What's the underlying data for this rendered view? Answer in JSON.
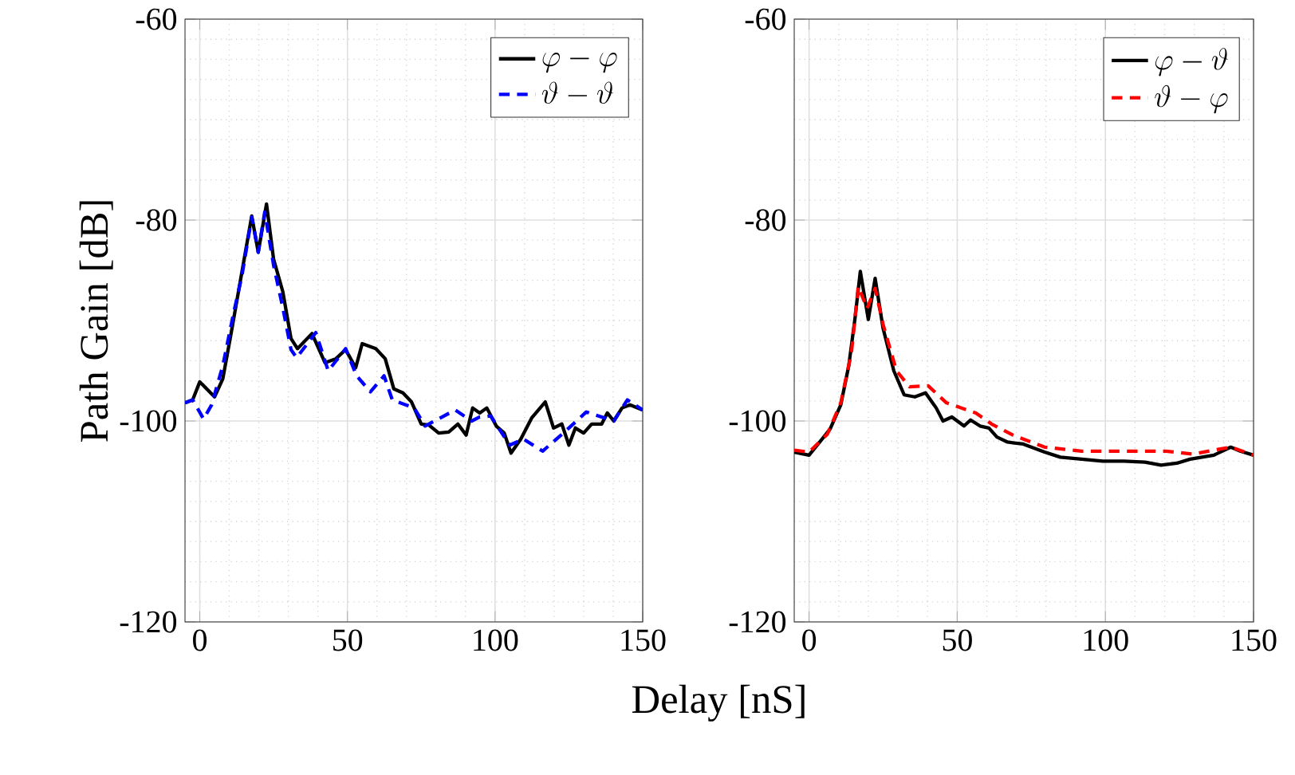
{
  "chart_data": [
    {
      "type": "line",
      "xlabel": "Delay [nS]",
      "ylabel": "Path Gain [dB]",
      "xlim": [
        -5,
        150
      ],
      "ylim": [
        -120,
        -60
      ],
      "xticks": [
        0,
        50,
        100,
        150
      ],
      "yticks": [
        -120,
        -100,
        -80,
        -60
      ],
      "grid": true,
      "legend": "top right",
      "series": [
        {
          "name": "\\varphi - \\varphi",
          "color": "#000000",
          "line_style": "solid",
          "x": [
            -5,
            -2.4,
            0,
            5,
            7.8,
            10.6,
            13.3,
            17.6,
            19.8,
            22.6,
            25,
            28.1,
            30.9,
            33.1,
            38,
            42.4,
            46.1,
            49.4,
            52.8,
            55,
            59.6,
            62.8,
            65.7,
            68.8,
            71.7,
            75,
            77.6,
            80.9,
            84.3,
            87.4,
            90.2,
            92.4,
            94.8,
            97.2,
            100.4,
            103.1,
            105.4,
            108.7,
            112.4,
            117,
            119.8,
            122.6,
            125,
            127.2,
            130,
            132.7,
            136.1,
            138,
            140.2,
            143,
            145.7,
            150
          ],
          "values": [
            -98.2,
            -97.9,
            -96.1,
            -97.6,
            -95.8,
            -91.3,
            -86.8,
            -79.6,
            -83.2,
            -78.4,
            -83.9,
            -87.1,
            -91.8,
            -92.8,
            -91.3,
            -94.2,
            -93.8,
            -92.9,
            -94.7,
            -92.3,
            -92.8,
            -93.8,
            -96.8,
            -97.2,
            -98.1,
            -100.3,
            -100.4,
            -101.2,
            -101.1,
            -100.3,
            -101.4,
            -98.7,
            -99.2,
            -98.7,
            -100.5,
            -101.2,
            -103.2,
            -101.8,
            -99.7,
            -98.1,
            -100.7,
            -100.3,
            -102.4,
            -100.7,
            -101.2,
            -100.3,
            -100.3,
            -99.2,
            -100,
            -98.7,
            -98.4,
            -98.9
          ]
        },
        {
          "name": "\\vartheta - \\vartheta",
          "color": "#0000ff",
          "line_style": "dashed",
          "x": [
            -5,
            -2.4,
            1.3,
            4,
            7.8,
            11.5,
            14.3,
            17.6,
            19.8,
            22,
            25,
            28.1,
            30.9,
            32.8,
            39.3,
            43.5,
            49.4,
            53.1,
            57.8,
            62.4,
            65.2,
            72.6,
            76.3,
            86.5,
            92.1,
            94.8,
            98.5,
            105,
            109.6,
            116.1,
            123.5,
            130.9,
            140.2,
            144.8,
            150
          ],
          "values": [
            -98.2,
            -97.9,
            -99.8,
            -98.4,
            -94.5,
            -89.2,
            -85.5,
            -79.7,
            -83.2,
            -79.2,
            -84.5,
            -88.7,
            -92.9,
            -93.7,
            -91.2,
            -95,
            -92.8,
            -95.5,
            -97.1,
            -95.5,
            -97.9,
            -98.7,
            -100.5,
            -98.9,
            -100,
            -99.6,
            -99.5,
            -102.4,
            -101.8,
            -103,
            -101.1,
            -99.1,
            -100,
            -97.9,
            -98.9
          ]
        }
      ]
    },
    {
      "type": "line",
      "xlim": [
        -5,
        150
      ],
      "ylim": [
        -120,
        -60
      ],
      "xticks": [
        0,
        50,
        100,
        150
      ],
      "yticks": [
        -120,
        -100,
        -80,
        -60
      ],
      "grid": true,
      "legend": "top right",
      "series": [
        {
          "name": "\\varphi - \\vartheta",
          "color": "#000000",
          "line_style": "solid",
          "x": [
            -5,
            0,
            3.6,
            7.1,
            10.7,
            13.4,
            15.5,
            17.3,
            20,
            22.3,
            25,
            28.6,
            32.1,
            35.7,
            39.3,
            42.9,
            45.2,
            48.2,
            52.3,
            54.5,
            57.7,
            60.7,
            63.4,
            67,
            72.3,
            79.5,
            84.8,
            92,
            99.1,
            106.3,
            113.4,
            118.8,
            124.1,
            128.6,
            136.6,
            142.3,
            145.5,
            150
          ],
          "values": [
            -103.1,
            -103.4,
            -102.1,
            -100.8,
            -98.4,
            -94.5,
            -89.8,
            -85.1,
            -89.9,
            -85.8,
            -90.8,
            -95,
            -97.4,
            -97.6,
            -97.2,
            -98.7,
            -100,
            -99.6,
            -100.5,
            -99.9,
            -100.5,
            -100.7,
            -101.6,
            -102.1,
            -102.3,
            -103.1,
            -103.6,
            -103.8,
            -104,
            -104,
            -104.1,
            -104.4,
            -104.2,
            -103.8,
            -103.4,
            -102.6,
            -103,
            -103.4
          ]
        },
        {
          "name": "\\vartheta - \\varphi",
          "color": "#ff0000",
          "line_style": "dashed",
          "x": [
            -5,
            0,
            6.2,
            10.7,
            14.3,
            16.6,
            19.6,
            22.3,
            25,
            29.5,
            33.9,
            40.2,
            46.4,
            56.3,
            61.6,
            68.8,
            79.5,
            92,
            102.7,
            120.5,
            129.5,
            136.6,
            142.3,
            150
          ],
          "values": [
            -102.9,
            -103.1,
            -101.3,
            -98.2,
            -93.2,
            -86.6,
            -88.8,
            -86.8,
            -90.4,
            -95,
            -96.6,
            -96.5,
            -98.2,
            -99.2,
            -100.3,
            -101.4,
            -102.6,
            -103,
            -103,
            -103,
            -103.3,
            -102.9,
            -102.6,
            -103.4
          ]
        }
      ]
    }
  ]
}
